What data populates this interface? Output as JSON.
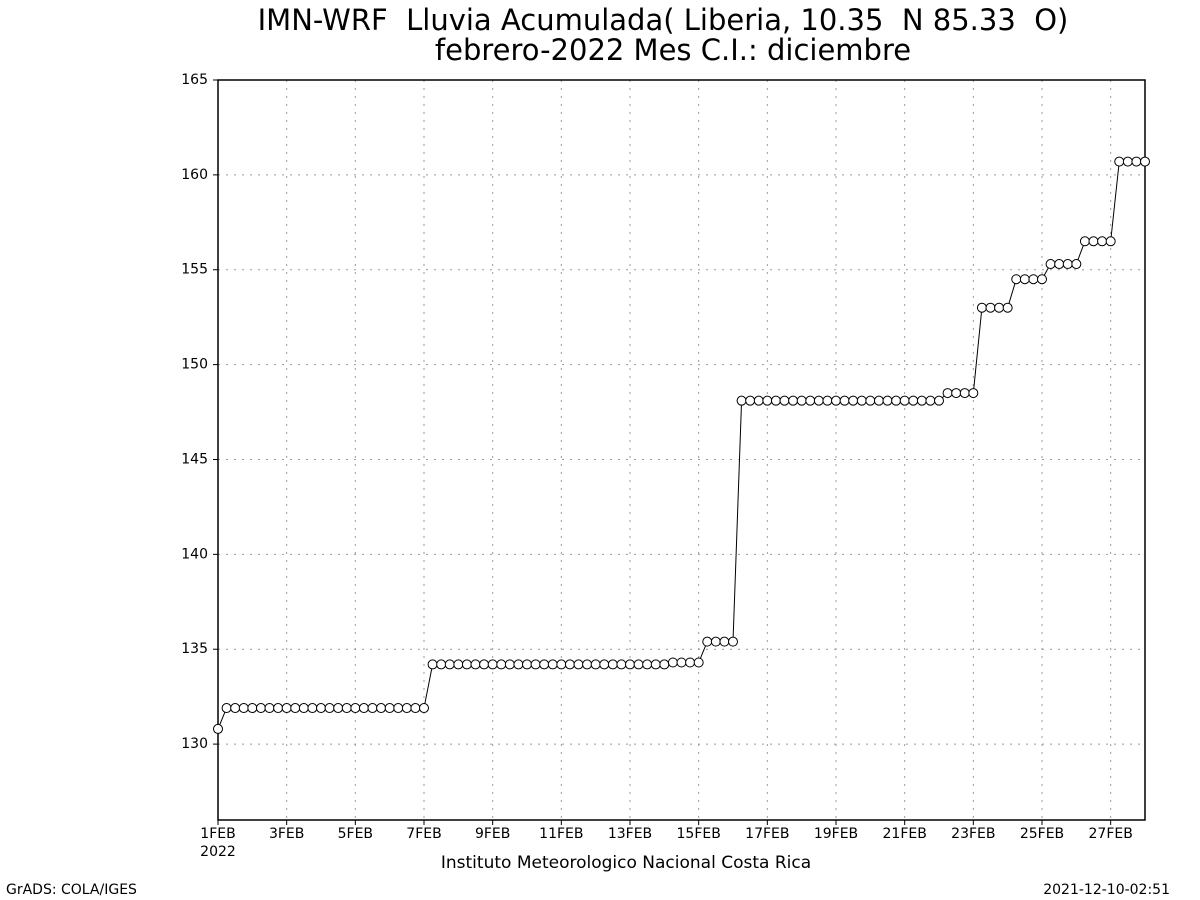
{
  "chart_data": {
    "type": "line",
    "title": "IMN-WRF  Lluvia Acumulada( Liberia, 10.35  N 85.33  O)",
    "subtitle": "febrero-2022 Mes C.I.: diciembre",
    "x_tick_year": "2022",
    "footer": "Instituto Meteorologico Nacional Costa Rica",
    "credit": "GrADS: COLA/IGES",
    "timestamp": "2021-12-10-02:51",
    "x": [
      1,
      1.25,
      1.5,
      1.75,
      2,
      2.25,
      2.5,
      2.75,
      3,
      3.25,
      3.5,
      3.75,
      4,
      4.25,
      4.5,
      4.75,
      5,
      5.25,
      5.5,
      5.75,
      6,
      6.25,
      6.5,
      6.75,
      7,
      7.25,
      7.5,
      7.75,
      8,
      8.25,
      8.5,
      8.75,
      9,
      9.25,
      9.5,
      9.75,
      10,
      10.25,
      10.5,
      10.75,
      11,
      11.25,
      11.5,
      11.75,
      12,
      12.25,
      12.5,
      12.75,
      13,
      13.25,
      13.5,
      13.75,
      14,
      14.25,
      14.5,
      14.75,
      15,
      15.25,
      15.5,
      15.75,
      16,
      16.25,
      16.5,
      16.75,
      17,
      17.25,
      17.5,
      17.75,
      18,
      18.25,
      18.5,
      18.75,
      19,
      19.25,
      19.5,
      19.75,
      20,
      20.25,
      20.5,
      20.75,
      21,
      21.25,
      21.5,
      21.75,
      22,
      22.25,
      22.5,
      22.75,
      23,
      23.25,
      23.5,
      23.75,
      24,
      24.25,
      24.5,
      24.75,
      25,
      25.25,
      25.5,
      25.75,
      26,
      26.25,
      26.5,
      26.75,
      27,
      27.25,
      27.5,
      27.75,
      28
    ],
    "series": [
      {
        "color": "#000000",
        "values": [
          130.8,
          131.9,
          131.9,
          131.9,
          131.9,
          131.9,
          131.9,
          131.9,
          131.9,
          131.9,
          131.9,
          131.9,
          131.9,
          131.9,
          131.9,
          131.9,
          131.9,
          131.9,
          131.9,
          131.9,
          131.9,
          131.9,
          131.9,
          131.9,
          131.9,
          134.2,
          134.2,
          134.2,
          134.2,
          134.2,
          134.2,
          134.2,
          134.2,
          134.2,
          134.2,
          134.2,
          134.2,
          134.2,
          134.2,
          134.2,
          134.2,
          134.2,
          134.2,
          134.2,
          134.2,
          134.2,
          134.2,
          134.2,
          134.2,
          134.2,
          134.2,
          134.2,
          134.2,
          134.3,
          134.3,
          134.3,
          134.3,
          135.4,
          135.4,
          135.4,
          135.4,
          148.1,
          148.1,
          148.1,
          148.1,
          148.1,
          148.1,
          148.1,
          148.1,
          148.1,
          148.1,
          148.1,
          148.1,
          148.1,
          148.1,
          148.1,
          148.1,
          148.1,
          148.1,
          148.1,
          148.1,
          148.1,
          148.1,
          148.1,
          148.1,
          148.5,
          148.5,
          148.5,
          148.5,
          153.0,
          153.0,
          153.0,
          153.0,
          154.5,
          154.5,
          154.5,
          154.5,
          155.3,
          155.3,
          155.3,
          155.3,
          156.5,
          156.5,
          156.5,
          156.5,
          160.7,
          160.7,
          160.7,
          160.7
        ]
      }
    ],
    "xlim": [
      1,
      28
    ],
    "xticks": [
      {
        "value": 1,
        "label": "1FEB"
      },
      {
        "value": 3,
        "label": "3FEB"
      },
      {
        "value": 5,
        "label": "5FEB"
      },
      {
        "value": 7,
        "label": "7FEB"
      },
      {
        "value": 9,
        "label": "9FEB"
      },
      {
        "value": 11,
        "label": "11FEB"
      },
      {
        "value": 13,
        "label": "13FEB"
      },
      {
        "value": 15,
        "label": "15FEB"
      },
      {
        "value": 17,
        "label": "17FEB"
      },
      {
        "value": 19,
        "label": "19FEB"
      },
      {
        "value": 21,
        "label": "21FEB"
      },
      {
        "value": 23,
        "label": "23FEB"
      },
      {
        "value": 25,
        "label": "25FEB"
      },
      {
        "value": 27,
        "label": "27FEB"
      }
    ],
    "ylim": [
      126,
      165
    ],
    "yticks": [
      130,
      135,
      140,
      145,
      150,
      155,
      160,
      165
    ],
    "grid": true
  }
}
